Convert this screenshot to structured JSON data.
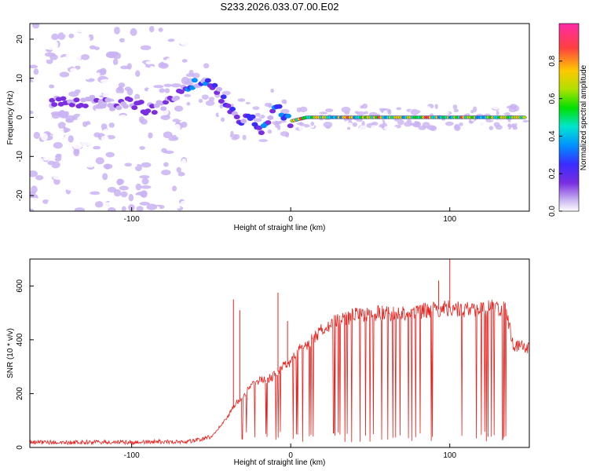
{
  "figure_title": "S233.2026.033.07.00.E02",
  "chart_data": [
    {
      "type": "heatmap",
      "title": "",
      "xlabel": "Height of straight line (km)",
      "ylabel": "Frequency (Hz)",
      "xlim": [
        -164,
        150
      ],
      "ylim": [
        -24,
        24
      ],
      "xticks": [
        -100,
        0,
        100
      ],
      "yticks": [
        20,
        10,
        0,
        -10,
        -20
      ],
      "colorbar": {
        "label": "Normalized spectral amplitude",
        "range": [
          0,
          1
        ],
        "ticks": [
          0.0,
          0.2,
          0.4,
          0.6,
          0.8
        ],
        "colormap": [
          "#ffffff",
          "#c9b3f2",
          "#7a2ee0",
          "#3a2bff",
          "#0090ff",
          "#00e5d0",
          "#00e000",
          "#b0e000",
          "#ffc800",
          "#ff4040",
          "#ff2aa8"
        ]
      },
      "ridge": [
        [
          -140,
          4
        ],
        [
          -125,
          4
        ],
        [
          -110,
          3
        ],
        [
          -100,
          4
        ],
        [
          -90,
          2
        ],
        [
          -80,
          3
        ],
        [
          -70,
          6
        ],
        [
          -62,
          8
        ],
        [
          -55,
          9
        ],
        [
          -50,
          8
        ],
        [
          -45,
          6
        ],
        [
          -40,
          3
        ],
        [
          -35,
          0
        ],
        [
          -30,
          -1
        ],
        [
          -25,
          0
        ],
        [
          -18,
          -3
        ],
        [
          -15,
          -1
        ],
        [
          -12,
          1
        ],
        [
          -8,
          2
        ],
        [
          -4,
          0
        ],
        [
          0,
          -1
        ],
        [
          10,
          0
        ],
        [
          50,
          0
        ],
        [
          95,
          0
        ],
        [
          150,
          0
        ]
      ],
      "noise_region_km": [
        -164,
        -66
      ]
    },
    {
      "type": "line",
      "title": "",
      "xlabel": "Height of straight line (km)",
      "ylabel": "SNR (10 * v/v)",
      "xlim": [
        -164,
        150
      ],
      "ylim": [
        0,
        700
      ],
      "xticks": [
        -100,
        0,
        100
      ],
      "yticks": [
        0,
        200,
        400,
        600
      ],
      "series": [
        {
          "name": "SNR",
          "color": "#e8211d",
          "x": [
            -164,
            -140,
            -120,
            -100,
            -80,
            -70,
            -60,
            -50,
            -45,
            -40,
            -35,
            -30,
            -25,
            -20,
            -15,
            -10,
            -5,
            0,
            5,
            10,
            15,
            20,
            25,
            30,
            40,
            50,
            60,
            70,
            80,
            90,
            100,
            110,
            120,
            130,
            135,
            138,
            140,
            145,
            150
          ],
          "y": [
            20,
            18,
            20,
            18,
            22,
            20,
            25,
            40,
            75,
            110,
            160,
            190,
            230,
            250,
            250,
            270,
            300,
            320,
            360,
            380,
            410,
            440,
            460,
            470,
            490,
            495,
            500,
            500,
            505,
            510,
            520,
            510,
            515,
            520,
            510,
            440,
            380,
            375,
            370
          ],
          "spikes": [
            [
              -36,
              550
            ],
            [
              -32,
              510
            ],
            [
              -8,
              575
            ],
            [
              100,
              700
            ],
            [
              93,
              620
            ],
            [
              -2,
              470
            ]
          ]
        }
      ]
    }
  ]
}
